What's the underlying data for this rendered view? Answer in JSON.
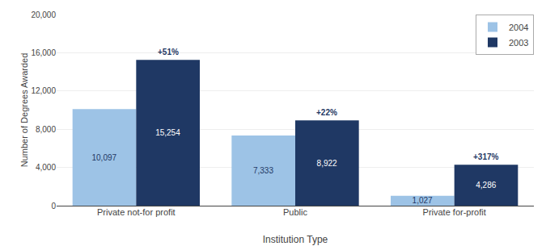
{
  "chart_data": {
    "type": "bar",
    "categories": [
      "Private not-for profit",
      "Public",
      "Private for-profit"
    ],
    "series": [
      {
        "name": "2004",
        "color": "#9DC3E6",
        "values": [
          10097,
          7333,
          1027
        ],
        "value_labels": [
          "10,097",
          "7,333",
          "1,027"
        ]
      },
      {
        "name": "2003",
        "color": "#1F3864",
        "values": [
          15254,
          8922,
          4286
        ],
        "value_labels": [
          "15,254",
          "8,922",
          "4,286"
        ],
        "annotations": [
          "+51%",
          "+22%",
          "+317%"
        ]
      }
    ],
    "xlabel": "Institution Type",
    "ylabel": "Number of Degrees Awarded",
    "ylim": [
      0,
      20000
    ],
    "yticks": [
      0,
      {
        "value": 4000,
        "label": "4,000"
      },
      {
        "value": 8000,
        "label": "8,000"
      },
      {
        "value": 12000,
        "label": "12,000"
      },
      {
        "value": 16000,
        "label": "16,000"
      },
      {
        "value": 20000,
        "label": "20,000"
      }
    ],
    "grid": true,
    "legend": "upper right",
    "data_labels": true
  }
}
